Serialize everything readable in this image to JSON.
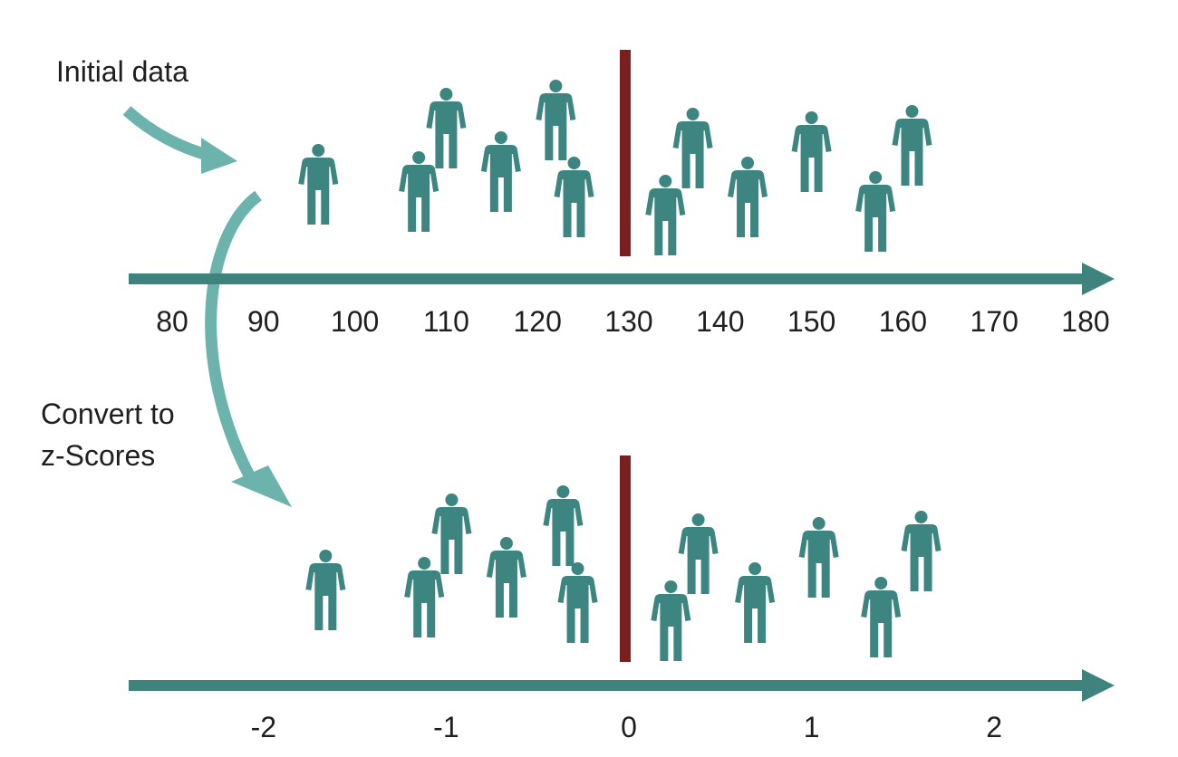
{
  "labels": {
    "initial": "Initial data",
    "convert_line1": "Convert to",
    "convert_line2": "z-Scores"
  },
  "colors": {
    "figure": "#3c8580",
    "arrow": "#3f837f",
    "curved_arrow": "#6cb3ae",
    "mean_line": "#7a1e1e",
    "text": "#1f1f1f"
  },
  "icons": {
    "person": "person-icon"
  },
  "chart_data": [
    {
      "type": "scatter",
      "axis_ticks": [
        "80",
        "90",
        "100",
        "110",
        "120",
        "130",
        "140",
        "150",
        "160",
        "170",
        "180"
      ],
      "xlim": [
        80,
        180
      ],
      "mean": 130,
      "people_x": [
        96,
        107,
        110,
        116,
        122,
        124,
        134,
        137,
        143,
        150,
        157,
        161
      ]
    },
    {
      "type": "scatter",
      "axis_ticks": [
        "-2",
        "-1",
        "0",
        "1",
        "2"
      ],
      "xlim": [
        -2.5,
        2.5
      ],
      "mean": 0,
      "people_x": [
        -1.66,
        -1.12,
        -0.97,
        -0.67,
        -0.36,
        -0.28,
        0.23,
        0.38,
        0.69,
        1.04,
        1.38,
        1.6
      ]
    }
  ]
}
